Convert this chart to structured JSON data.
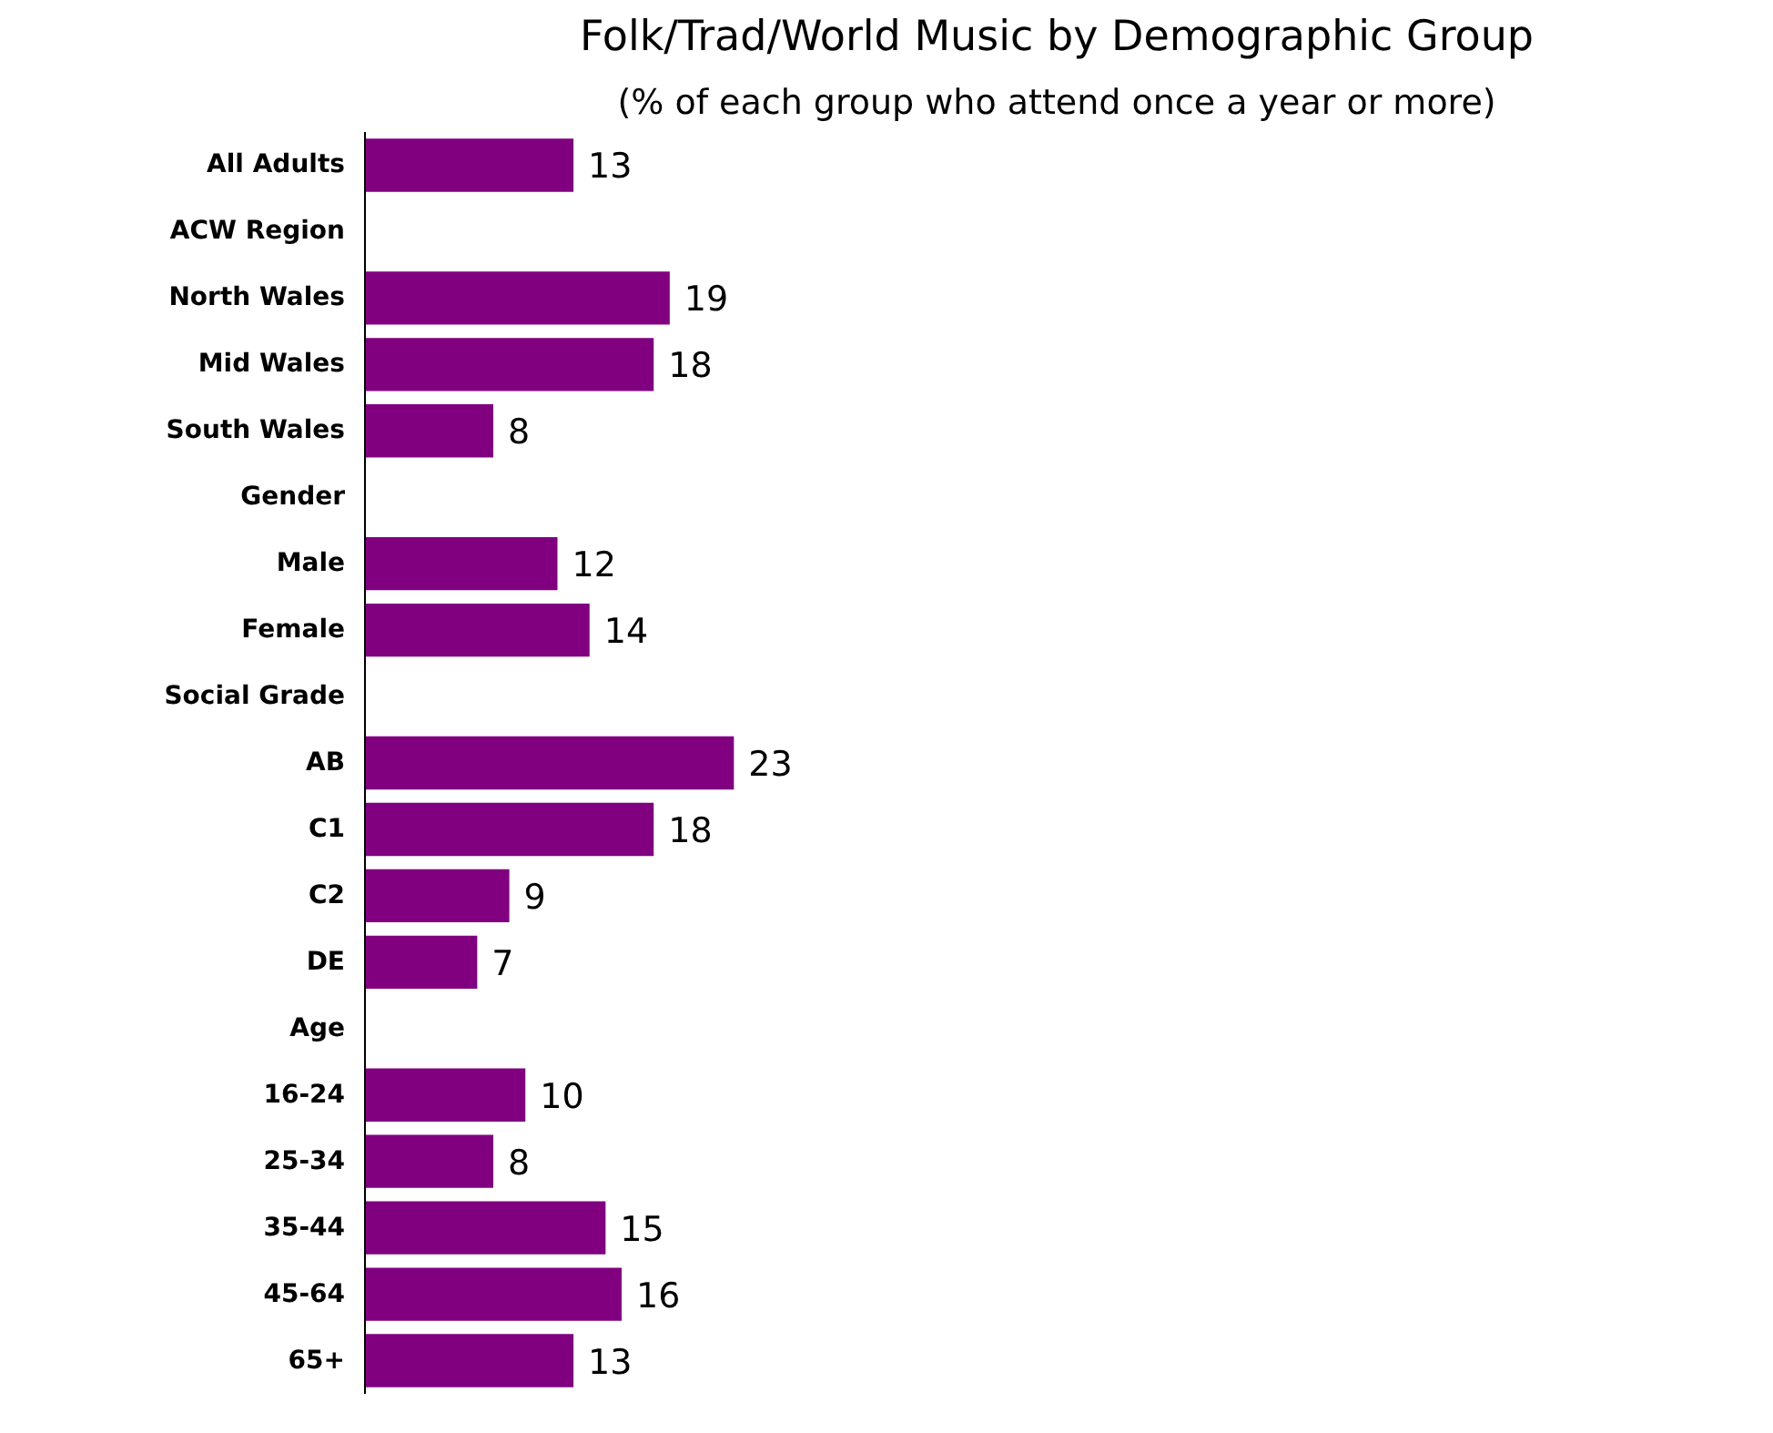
{
  "chart_data": {
    "type": "bar",
    "orientation": "horizontal",
    "title": "Folk/Trad/World Music by Demographic Group",
    "subtitle": "(% of each group who attend once a year or more)",
    "categories": [
      "All Adults",
      "ACW Region",
      "North Wales",
      "Mid Wales",
      "South Wales",
      "Gender",
      "Male",
      "Female",
      "Social Grade",
      "AB",
      "C1",
      "C2",
      "DE",
      "Age",
      "16-24",
      "25-34",
      "35-44",
      "45-64",
      "65+"
    ],
    "values": [
      13,
      null,
      19,
      18,
      8,
      null,
      12,
      14,
      null,
      23,
      18,
      9,
      7,
      null,
      10,
      8,
      15,
      16,
      13
    ],
    "color": "#800080",
    "data_labels": true,
    "tick_labels": "y"
  }
}
